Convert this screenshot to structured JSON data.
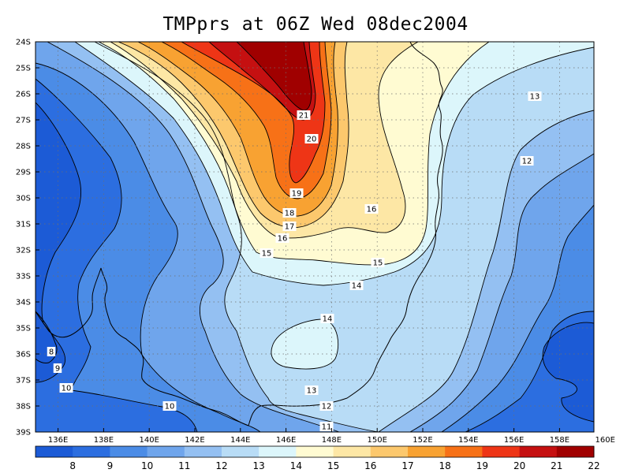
{
  "title": "TMPprs at 06Z Wed 08dec2004",
  "y_ticks": [
    "24S",
    "25S",
    "26S",
    "27S",
    "28S",
    "29S",
    "30S",
    "31S",
    "32S",
    "33S",
    "34S",
    "35S",
    "36S",
    "37S",
    "38S",
    "39S"
  ],
  "x_ticks": [
    "136E",
    "138E",
    "140E",
    "142E",
    "144E",
    "146E",
    "148E",
    "150E",
    "152E",
    "154E",
    "156E",
    "158E",
    "160E"
  ],
  "contour_labels": [
    "21",
    "20",
    "19",
    "18",
    "17",
    "16",
    "15",
    "16",
    "15",
    "14",
    "14",
    "13",
    "13",
    "12",
    "12",
    "11",
    "10",
    "10",
    "9",
    "8"
  ],
  "colorbar": {
    "colors": [
      "#1c5bd6",
      "#2c6ee0",
      "#4b8ce6",
      "#6fa5ec",
      "#94c0f2",
      "#b8dcf6",
      "#dcf6fb",
      "#fffbd2",
      "#fde7a5",
      "#fcc86d",
      "#f8a232",
      "#f77117",
      "#ee3516",
      "#c51011",
      "#a00000"
    ],
    "labels": [
      "8",
      "9",
      "10",
      "11",
      "12",
      "13",
      "14",
      "15",
      "16",
      "17",
      "18",
      "19",
      "20",
      "21",
      "22"
    ]
  }
}
